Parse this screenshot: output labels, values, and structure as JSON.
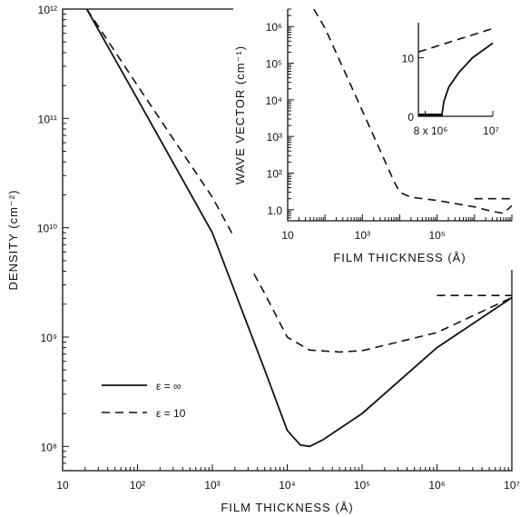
{
  "chart_data": [
    {
      "type": "line",
      "xlabel": "FILM THICKNESS (Å)",
      "ylabel": "DENSITY (cm⁻²)",
      "xscale": "log",
      "yscale": "log",
      "xlim": [
        10,
        10000000
      ],
      "ylim": [
        60000000,
        1000000000000
      ],
      "x_tick_labels": [
        "10",
        "10²",
        "10³",
        "10⁴",
        "10⁵",
        "10⁶",
        "10⁷"
      ],
      "y_tick_labels": [
        "10⁸",
        "10⁹",
        "10¹⁰",
        "10¹¹",
        "10¹²"
      ],
      "legend_position": "lower-left",
      "series": [
        {
          "name": "ε = ∞",
          "style": "solid",
          "points": [
            [
              21,
              1000000000000
            ],
            [
              100,
              150000000000
            ],
            [
              1000,
              9000000000
            ],
            [
              5000,
              500000000
            ],
            [
              10000,
              140000000
            ],
            [
              15000,
              103000000
            ],
            [
              20000,
              100000000
            ],
            [
              30000,
              115000000
            ],
            [
              100000,
              200000000
            ],
            [
              1000000,
              800000000
            ],
            [
              10000000,
              2300000000
            ]
          ]
        },
        {
          "name": "ε = 10",
          "style": "dashed",
          "points": [
            [
              21,
              1000000000000
            ],
            [
              100,
              200000000000
            ],
            [
              1000,
              19000000000
            ],
            [
              5000,
              2500000000
            ],
            [
              10000,
              1000000000
            ],
            [
              20000,
              760000000
            ],
            [
              50000,
              730000000
            ],
            [
              100000,
              750000000
            ],
            [
              1000000,
              1100000000
            ],
            [
              10000000,
              2300000000
            ]
          ]
        },
        {
          "name": "",
          "style": "dashed",
          "points": [
            [
              1000000,
              2400000000
            ],
            [
              10000000,
              2400000000
            ]
          ]
        }
      ]
    },
    {
      "type": "line",
      "xlabel": "FILM THICKNESS (Å)",
      "ylabel": "WAVE VECTOR (cm⁻¹)",
      "xscale": "log",
      "yscale": "log",
      "xlim": [
        10,
        10000000
      ],
      "ylim": [
        5,
        3000000
      ],
      "x_tick_labels": [
        "10",
        "10³",
        "10⁵"
      ],
      "y_tick_labels": [
        "1.0",
        "10²",
        "10³",
        "10⁴",
        "10⁵",
        "10⁶"
      ],
      "series": [
        {
          "name": "",
          "style": "dashed",
          "points": [
            [
              50,
              3000000
            ],
            [
              100,
              900000
            ],
            [
              1000,
              5000
            ],
            [
              7000,
              60
            ],
            [
              10000,
              30
            ],
            [
              20000,
              22
            ],
            [
              100000,
              18
            ],
            [
              1000000,
              12
            ],
            [
              3000000,
              9
            ],
            [
              6000000,
              8
            ],
            [
              10000000,
              13
            ]
          ]
        },
        {
          "name": "",
          "style": "dashed",
          "points": [
            [
              1000000,
              20
            ],
            [
              10000000,
              20
            ]
          ]
        }
      ]
    },
    {
      "type": "line",
      "xscale": "linear",
      "yscale": "linear",
      "x_tick_labels": [
        "8 x 10⁶",
        "10⁷"
      ],
      "y_tick_labels": [
        "0",
        "10"
      ],
      "xlim": [
        7800000,
        10000000
      ],
      "ylim": [
        0,
        16
      ],
      "series": [
        {
          "name": "",
          "style": "dashed",
          "points": [
            [
              7800000,
              11
            ],
            [
              10000000,
              15
            ]
          ]
        },
        {
          "name": "",
          "style": "solid",
          "points": [
            [
              8500000,
              0
            ],
            [
              8500000,
              0.4
            ],
            [
              8550000,
              2.5
            ],
            [
              8700000,
              5
            ],
            [
              9000000,
              7.5
            ],
            [
              9400000,
              10
            ],
            [
              10000000,
              12.5
            ]
          ]
        }
      ]
    }
  ]
}
